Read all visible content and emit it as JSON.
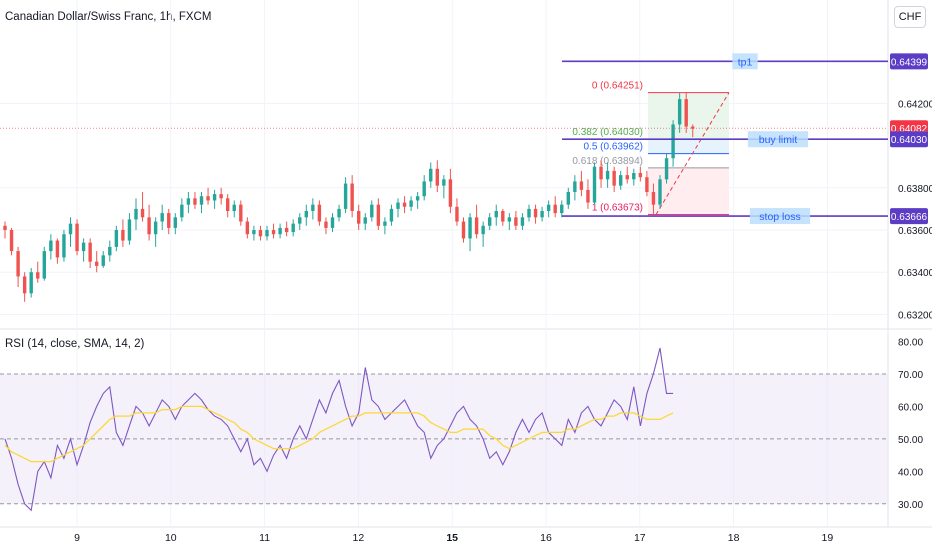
{
  "header": {
    "title": "Canadian Dollar/Swiss Franc, 1h, FXCM",
    "currency": "CHF"
  },
  "rsi": {
    "title": "RSI (14, close, SMA, 14, 2)"
  },
  "colors": {
    "up": "#26a69a",
    "down": "#ef5350",
    "line": "#5b3cc4",
    "rsi": "#7e57c2",
    "rsi_ma": "#fdd835",
    "rsi_band": "#ede7f6"
  },
  "chart_data": [
    {
      "type": "candlestick",
      "title": "Canadian Dollar/Swiss Franc, 1h, FXCM",
      "ylim": [
        0.6315,
        0.645
      ],
      "y_ticks": [
        "0.64200",
        "0.63800",
        "0.63600",
        "0.63400",
        "0.63200"
      ],
      "x_ticks": [
        "9",
        "10",
        "11",
        "12",
        "15",
        "16",
        "17",
        "18",
        "19"
      ],
      "x_tick_bold": "15",
      "levels": [
        {
          "name": "tp1",
          "price": "0.64399",
          "value": 0.64399
        },
        {
          "name": "buy limit",
          "price": "0.64030",
          "value": 0.6403
        },
        {
          "name": "stop loss",
          "price": "0.63666",
          "value": 0.63666
        }
      ],
      "current_price": {
        "label": "0.64082",
        "value": 0.64082
      },
      "fibonacci": [
        {
          "label": "0 (0.64251)",
          "value": 0.64251
        },
        {
          "label": "0.382 (0.64030)",
          "value": 0.6403
        },
        {
          "label": "0.5 (0.63962)",
          "value": 0.63962
        },
        {
          "label": "0.618 (0.63894)",
          "value": 0.63894
        },
        {
          "label": "1 (0.63673)",
          "value": 0.63673
        }
      ],
      "candles": [
        [
          0.6362,
          0.6364,
          0.6356,
          0.636
        ],
        [
          0.636,
          0.6361,
          0.6348,
          0.635
        ],
        [
          0.635,
          0.6352,
          0.6333,
          0.6338
        ],
        [
          0.6338,
          0.634,
          0.6326,
          0.633
        ],
        [
          0.633,
          0.6342,
          0.6328,
          0.634
        ],
        [
          0.634,
          0.6345,
          0.6335,
          0.6337
        ],
        [
          0.6337,
          0.6352,
          0.6336,
          0.635
        ],
        [
          0.635,
          0.6358,
          0.6346,
          0.6355
        ],
        [
          0.6355,
          0.6356,
          0.6344,
          0.6347
        ],
        [
          0.6347,
          0.636,
          0.6345,
          0.6358
        ],
        [
          0.6358,
          0.6366,
          0.6352,
          0.6363
        ],
        [
          0.6363,
          0.6365,
          0.6348,
          0.635
        ],
        [
          0.635,
          0.6356,
          0.6345,
          0.6354
        ],
        [
          0.6354,
          0.6356,
          0.6342,
          0.6345
        ],
        [
          0.6345,
          0.635,
          0.634,
          0.6343
        ],
        [
          0.6343,
          0.635,
          0.6342,
          0.6348
        ],
        [
          0.6348,
          0.6355,
          0.6345,
          0.6352
        ],
        [
          0.6352,
          0.6362,
          0.635,
          0.636
        ],
        [
          0.636,
          0.6365,
          0.6352,
          0.6355
        ],
        [
          0.6355,
          0.6368,
          0.6353,
          0.6365
        ],
        [
          0.6365,
          0.6375,
          0.636,
          0.637
        ],
        [
          0.637,
          0.6378,
          0.6364,
          0.6366
        ],
        [
          0.6366,
          0.6372,
          0.6355,
          0.6358
        ],
        [
          0.6358,
          0.6366,
          0.6352,
          0.6364
        ],
        [
          0.6364,
          0.6372,
          0.636,
          0.6368
        ],
        [
          0.6368,
          0.637,
          0.6358,
          0.6361
        ],
        [
          0.6361,
          0.6368,
          0.6358,
          0.6366
        ],
        [
          0.6366,
          0.6375,
          0.6364,
          0.6372
        ],
        [
          0.6372,
          0.6378,
          0.6368,
          0.6375
        ],
        [
          0.6375,
          0.6378,
          0.637,
          0.6372
        ],
        [
          0.6372,
          0.6378,
          0.6368,
          0.6376
        ],
        [
          0.6376,
          0.638,
          0.6372,
          0.6374
        ],
        [
          0.6374,
          0.6379,
          0.637,
          0.6377
        ],
        [
          0.6377,
          0.638,
          0.6372,
          0.6375
        ],
        [
          0.6375,
          0.6377,
          0.6366,
          0.6369
        ],
        [
          0.6369,
          0.6374,
          0.6366,
          0.6372
        ],
        [
          0.6372,
          0.6374,
          0.6362,
          0.6364
        ],
        [
          0.6364,
          0.6366,
          0.6356,
          0.6358
        ],
        [
          0.6358,
          0.6362,
          0.6355,
          0.636
        ],
        [
          0.636,
          0.6362,
          0.6355,
          0.6357
        ],
        [
          0.6357,
          0.6362,
          0.6355,
          0.636
        ],
        [
          0.636,
          0.6363,
          0.6356,
          0.6358
        ],
        [
          0.6358,
          0.6363,
          0.6356,
          0.6361
        ],
        [
          0.6361,
          0.6364,
          0.6357,
          0.6359
        ],
        [
          0.6359,
          0.6365,
          0.6357,
          0.6363
        ],
        [
          0.6363,
          0.6368,
          0.636,
          0.6366
        ],
        [
          0.6366,
          0.6372,
          0.6362,
          0.6369
        ],
        [
          0.6369,
          0.6375,
          0.6365,
          0.6372
        ],
        [
          0.6372,
          0.6374,
          0.6362,
          0.6364
        ],
        [
          0.6364,
          0.6366,
          0.6358,
          0.6361
        ],
        [
          0.6361,
          0.6368,
          0.6359,
          0.6366
        ],
        [
          0.6366,
          0.6372,
          0.6364,
          0.637
        ],
        [
          0.637,
          0.6385,
          0.6368,
          0.6382
        ],
        [
          0.6382,
          0.6386,
          0.6366,
          0.6369
        ],
        [
          0.6369,
          0.6372,
          0.636,
          0.6363
        ],
        [
          0.6363,
          0.6368,
          0.636,
          0.6366
        ],
        [
          0.6366,
          0.6374,
          0.6364,
          0.6372
        ],
        [
          0.6372,
          0.6375,
          0.636,
          0.6362
        ],
        [
          0.6362,
          0.6366,
          0.6358,
          0.6364
        ],
        [
          0.6364,
          0.6372,
          0.6362,
          0.637
        ],
        [
          0.637,
          0.6375,
          0.6366,
          0.6373
        ],
        [
          0.6373,
          0.6376,
          0.6368,
          0.6371
        ],
        [
          0.6371,
          0.6376,
          0.6369,
          0.6374
        ],
        [
          0.6374,
          0.6378,
          0.637,
          0.6376
        ],
        [
          0.6376,
          0.6386,
          0.6374,
          0.6383
        ],
        [
          0.6383,
          0.6392,
          0.638,
          0.6389
        ],
        [
          0.6389,
          0.6393,
          0.6378,
          0.6381
        ],
        [
          0.6381,
          0.6386,
          0.6375,
          0.6384
        ],
        [
          0.6384,
          0.6389,
          0.6368,
          0.6371
        ],
        [
          0.6371,
          0.6375,
          0.6362,
          0.6364
        ],
        [
          0.6364,
          0.6366,
          0.6354,
          0.6356
        ],
        [
          0.6356,
          0.6368,
          0.635,
          0.6366
        ],
        [
          0.6366,
          0.6372,
          0.6356,
          0.6358
        ],
        [
          0.6358,
          0.6364,
          0.6352,
          0.6362
        ],
        [
          0.6362,
          0.6368,
          0.636,
          0.6366
        ],
        [
          0.6366,
          0.6372,
          0.6362,
          0.6369
        ],
        [
          0.6369,
          0.637,
          0.6362,
          0.6364
        ],
        [
          0.6364,
          0.6368,
          0.636,
          0.6366
        ],
        [
          0.6366,
          0.6369,
          0.636,
          0.6362
        ],
        [
          0.6362,
          0.6368,
          0.636,
          0.6366
        ],
        [
          0.6366,
          0.6372,
          0.6364,
          0.637
        ],
        [
          0.637,
          0.6372,
          0.6363,
          0.6366
        ],
        [
          0.6366,
          0.6371,
          0.6364,
          0.6369
        ],
        [
          0.6369,
          0.6374,
          0.6366,
          0.6372
        ],
        [
          0.6372,
          0.6376,
          0.6366,
          0.6368
        ],
        [
          0.6368,
          0.6374,
          0.6366,
          0.6372
        ],
        [
          0.6372,
          0.638,
          0.637,
          0.6378
        ],
        [
          0.6378,
          0.6386,
          0.6374,
          0.6383
        ],
        [
          0.6383,
          0.6388,
          0.6376,
          0.6379
        ],
        [
          0.6379,
          0.6384,
          0.637,
          0.6373
        ],
        [
          0.6373,
          0.6392,
          0.6372,
          0.639
        ],
        [
          0.639,
          0.6393,
          0.638,
          0.6384
        ],
        [
          0.6384,
          0.6392,
          0.638,
          0.6388
        ],
        [
          0.6388,
          0.639,
          0.6378,
          0.6381
        ],
        [
          0.6381,
          0.6388,
          0.6379,
          0.6386
        ],
        [
          0.6386,
          0.639,
          0.6382,
          0.6384
        ],
        [
          0.6384,
          0.6389,
          0.6381,
          0.6387
        ],
        [
          0.6387,
          0.639,
          0.6383,
          0.6385
        ],
        [
          0.6385,
          0.6388,
          0.6376,
          0.6378
        ],
        [
          0.6378,
          0.6382,
          0.6367,
          0.6372
        ],
        [
          0.6372,
          0.6386,
          0.637,
          0.6384
        ],
        [
          0.6384,
          0.6396,
          0.6382,
          0.6394
        ],
        [
          0.6394,
          0.6412,
          0.639,
          0.641
        ],
        [
          0.641,
          0.6425,
          0.6406,
          0.6422
        ],
        [
          0.6422,
          0.6425,
          0.6406,
          0.6409
        ],
        [
          0.6409,
          0.641,
          0.6404,
          0.6408
        ]
      ]
    },
    {
      "type": "line",
      "title": "RSI (14, close, SMA, 14, 2)",
      "ylim": [
        25,
        82
      ],
      "y_ticks": [
        "80.00",
        "70.00",
        "60.00",
        "50.00",
        "40.00",
        "30.00"
      ],
      "bands": [
        30,
        50,
        70
      ],
      "series": [
        {
          "name": "RSI",
          "values": [
            50,
            44,
            36,
            30,
            28,
            40,
            43,
            38,
            48,
            44,
            50,
            42,
            48,
            55,
            60,
            64,
            66,
            52,
            48,
            54,
            60,
            58,
            54,
            58,
            62,
            60,
            56,
            60,
            62,
            64,
            62,
            59,
            57,
            56,
            54,
            50,
            46,
            50,
            42,
            44,
            40,
            45,
            48,
            44,
            50,
            54,
            50,
            56,
            62,
            58,
            64,
            68,
            60,
            54,
            58,
            72,
            62,
            60,
            56,
            58,
            60,
            62,
            58,
            54,
            52,
            44,
            48,
            50,
            54,
            58,
            60,
            56,
            54,
            50,
            44,
            46,
            42,
            46,
            52,
            56,
            52,
            56,
            58,
            52,
            50,
            48,
            56,
            52,
            58,
            60,
            56,
            54,
            58,
            62,
            60,
            56,
            66,
            54,
            64,
            70,
            78,
            64,
            64
          ]
        },
        {
          "name": "MA",
          "values": [
            48,
            46,
            45,
            44,
            43,
            43,
            43,
            43,
            44,
            45,
            46,
            47,
            48,
            50,
            52,
            54,
            56,
            57,
            57,
            57,
            58,
            58,
            58,
            58,
            59,
            59,
            59,
            60,
            60,
            60,
            60,
            59,
            58,
            57,
            56,
            55,
            53,
            52,
            50,
            49,
            48,
            47,
            47,
            47,
            47,
            48,
            49,
            50,
            52,
            53,
            54,
            55,
            56,
            57,
            57,
            58,
            58,
            58,
            58,
            58,
            58,
            58,
            58,
            58,
            57,
            55,
            54,
            53,
            52,
            52,
            53,
            53,
            53,
            53,
            51,
            50,
            48,
            47,
            48,
            49,
            50,
            51,
            52,
            52,
            52,
            52,
            53,
            53,
            54,
            55,
            56,
            56,
            57,
            57,
            58,
            58,
            58,
            57,
            56,
            56,
            56,
            57,
            58
          ]
        }
      ]
    }
  ]
}
